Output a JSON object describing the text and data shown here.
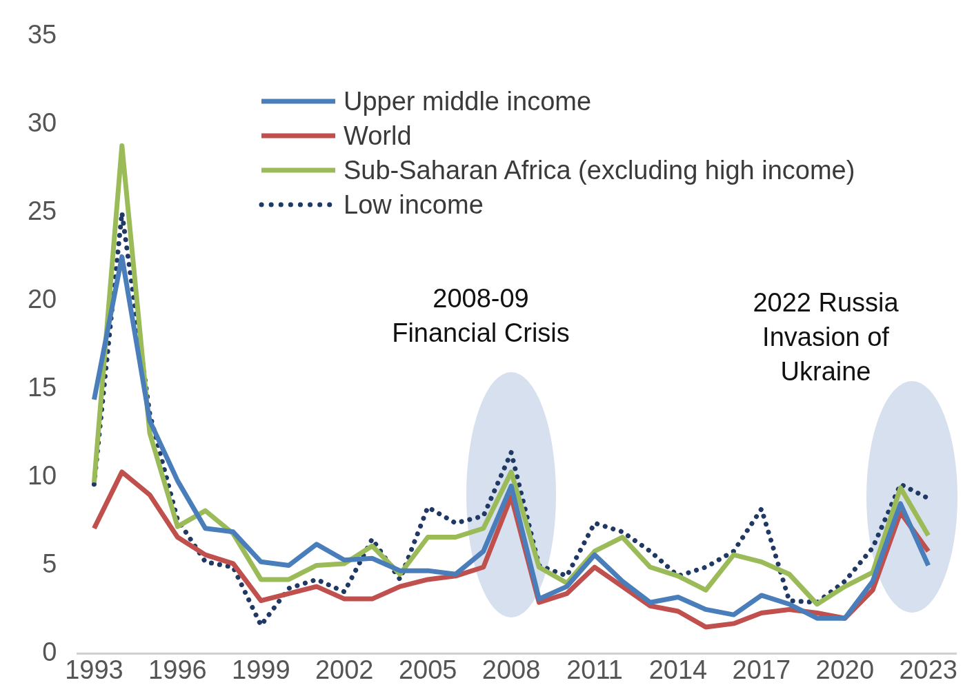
{
  "chart_data": {
    "type": "line",
    "x": [
      1993,
      1994,
      1995,
      1996,
      1997,
      1998,
      1999,
      2000,
      2001,
      2002,
      2003,
      2004,
      2005,
      2006,
      2007,
      2008,
      2009,
      2010,
      2011,
      2012,
      2013,
      2014,
      2015,
      2016,
      2017,
      2018,
      2019,
      2020,
      2021,
      2022,
      2023
    ],
    "series": [
      {
        "name": "Upper middle income",
        "color": "#4a7ebb",
        "values": [
          14.4,
          22.5,
          13.2,
          9.8,
          7.1,
          6.9,
          5.2,
          5.0,
          6.2,
          5.3,
          5.4,
          4.7,
          4.7,
          4.5,
          5.8,
          9.5,
          3.1,
          3.8,
          5.6,
          4.1,
          2.9,
          3.2,
          2.5,
          2.2,
          3.3,
          2.8,
          2.0,
          2.0,
          4.1,
          8.5,
          5.0
        ]
      },
      {
        "name": "World",
        "color": "#c0504d",
        "values": [
          7.1,
          10.3,
          9.0,
          6.6,
          5.6,
          5.1,
          3.0,
          3.4,
          3.8,
          3.1,
          3.1,
          3.8,
          4.2,
          4.4,
          4.9,
          8.9,
          2.9,
          3.4,
          4.9,
          3.8,
          2.7,
          2.4,
          1.5,
          1.7,
          2.3,
          2.5,
          2.3,
          2.0,
          3.6,
          8.0,
          5.8
        ]
      },
      {
        "name": "Sub-Saharan Africa (excluding high income)",
        "color": "#9bbb59",
        "values": [
          9.7,
          28.8,
          12.5,
          7.2,
          8.1,
          6.8,
          4.2,
          4.2,
          5.0,
          5.1,
          6.1,
          4.5,
          6.6,
          6.6,
          7.1,
          10.3,
          4.9,
          4.0,
          5.8,
          6.6,
          4.9,
          4.4,
          3.6,
          5.6,
          5.2,
          4.5,
          2.8,
          3.8,
          4.6,
          9.4,
          6.7
        ]
      },
      {
        "name": "Low income",
        "color": "#1f3864",
        "line_style": "dotted",
        "values": [
          9.6,
          25.0,
          13.6,
          7.6,
          5.2,
          4.9,
          1.6,
          3.7,
          4.2,
          3.5,
          6.5,
          4.2,
          8.3,
          7.4,
          7.8,
          11.4,
          5.0,
          4.4,
          7.4,
          6.9,
          5.8,
          4.4,
          4.9,
          5.8,
          8.2,
          3.0,
          2.9,
          4.1,
          6.0,
          9.6,
          8.8
        ]
      }
    ],
    "xlim": [
      1992.4,
      2024
    ],
    "xticks": [
      1993,
      1996,
      1999,
      2002,
      2005,
      2008,
      2011,
      2014,
      2017,
      2020,
      2023
    ],
    "ylim": [
      0,
      35
    ],
    "yticks": [
      0,
      5,
      10,
      15,
      20,
      25,
      30,
      35
    ],
    "grid": false,
    "legend": "top",
    "marker": "none",
    "line_style": "solid",
    "annotations": [
      "2008-09\nFinancial Crisis",
      "2022 Russia\nInvasion of\nUkraine"
    ]
  }
}
